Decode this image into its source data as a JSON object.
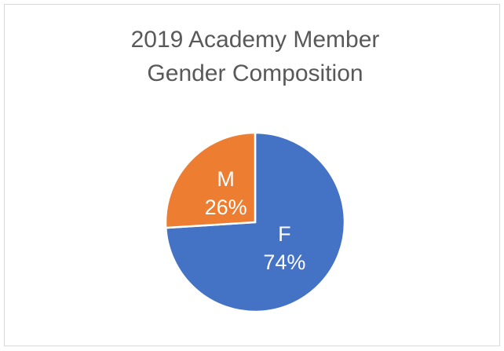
{
  "chart_data": {
    "type": "pie",
    "title": [
      "2019 Academy Member",
      "Gender Composition"
    ],
    "categories": [
      "F",
      "M"
    ],
    "values": [
      74,
      26
    ],
    "value_labels": [
      "74%",
      "26%"
    ],
    "colors": [
      "#4472c4",
      "#ed7d31"
    ]
  }
}
